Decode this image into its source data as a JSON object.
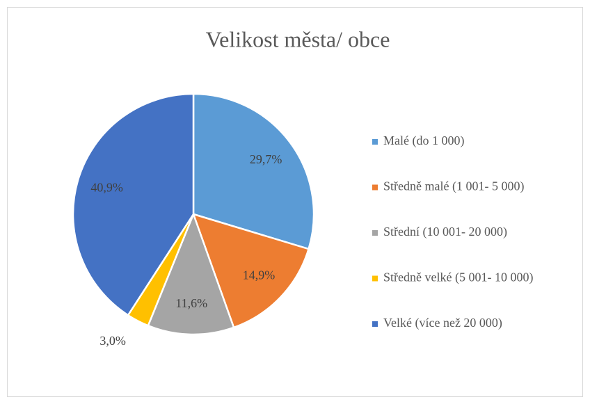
{
  "chart_data": {
    "type": "pie",
    "title": "Velikost města/ obce",
    "categories": [
      "Malé (do 1 000)",
      "Středně malé (1 001- 5 000)",
      "Střední (10 001- 20 000)",
      "Středně velké (5 001- 10 000)",
      "Velké (více než 20 000)"
    ],
    "values": [
      29.7,
      14.9,
      11.6,
      3.0,
      40.9
    ],
    "value_labels": [
      "29,7%",
      "14,9%",
      "11,6%",
      "3,0%",
      "40,9%"
    ],
    "colors": [
      "#5b9bd5",
      "#ed7d31",
      "#a5a5a5",
      "#ffc000",
      "#4472c4"
    ],
    "legend": "right"
  }
}
